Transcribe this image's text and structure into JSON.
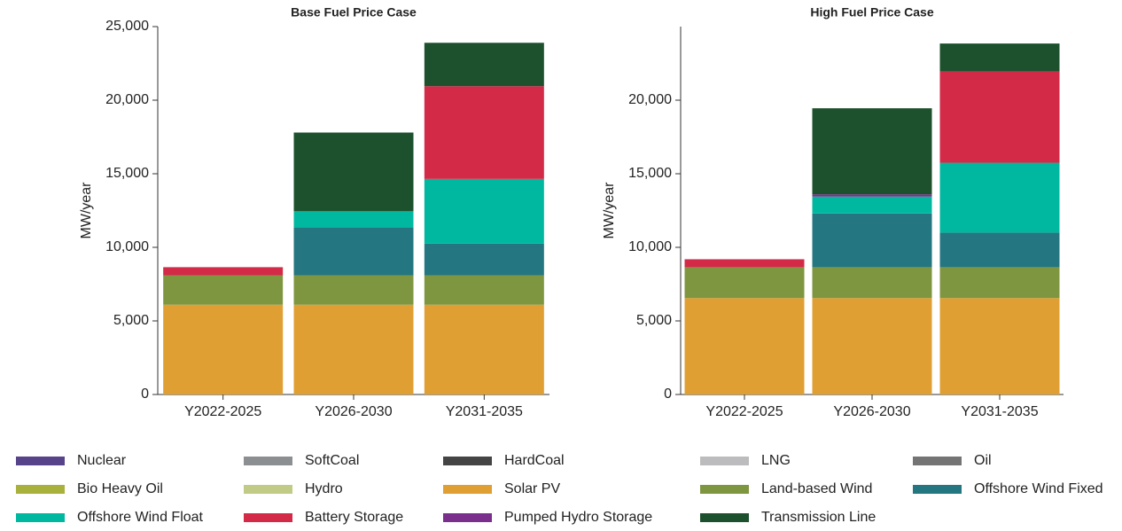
{
  "chart_data": [
    {
      "type": "bar",
      "stacked": true,
      "title": "Base Fuel Price Case",
      "ylabel": "MW/year",
      "categories": [
        "Y2022-2025",
        "Y2026-2030",
        "Y2031-2035"
      ],
      "ylim": [
        0,
        25000
      ],
      "yticks": [
        0,
        {
          "value": 5000,
          "label": "5,000"
        },
        {
          "value": 10000,
          "label": "10,000"
        },
        {
          "value": 15000,
          "label": "15,000"
        },
        {
          "value": 20000,
          "label": "20,000"
        },
        {
          "value": 25000,
          "label": "25,000"
        }
      ],
      "series": [
        {
          "values": [
            0,
            0,
            0
          ]
        },
        {
          "values": [
            0,
            0,
            0
          ]
        },
        {
          "values": [
            0,
            0,
            0
          ]
        },
        {
          "values": [
            0,
            0,
            0
          ]
        },
        {
          "values": [
            0,
            0,
            0
          ]
        },
        {
          "values": [
            0,
            0,
            0
          ]
        },
        {
          "values": [
            0,
            0,
            0
          ]
        },
        {
          "values": [
            6100,
            6100,
            6100
          ]
        },
        {
          "values": [
            2000,
            2000,
            2000
          ]
        },
        {
          "values": [
            0,
            3250,
            2150
          ]
        },
        {
          "values": [
            0,
            1100,
            4400
          ]
        },
        {
          "values": [
            550,
            0,
            6300
          ]
        },
        {
          "values": [
            0,
            0,
            0
          ]
        },
        {
          "values": [
            0,
            5350,
            2950
          ]
        }
      ]
    },
    {
      "type": "bar",
      "stacked": true,
      "title": "High Fuel Price Case",
      "ylabel": "MW/year",
      "categories": [
        "Y2022-2025",
        "Y2026-2030",
        "Y2031-2035"
      ],
      "ylim": [
        0,
        25000
      ],
      "yticks": [
        0,
        {
          "value": 5000,
          "label": "5,000"
        },
        {
          "value": 10000,
          "label": "10,000"
        },
        {
          "value": 15000,
          "label": "15,000"
        },
        {
          "value": 20000,
          "label": "20,000"
        }
      ],
      "series": [
        {
          "values": [
            0,
            0,
            0
          ]
        },
        {
          "values": [
            0,
            0,
            0
          ]
        },
        {
          "values": [
            0,
            0,
            0
          ]
        },
        {
          "values": [
            0,
            0,
            0
          ]
        },
        {
          "values": [
            0,
            0,
            0
          ]
        },
        {
          "values": [
            0,
            0,
            0
          ]
        },
        {
          "values": [
            0,
            0,
            0
          ]
        },
        {
          "values": [
            6550,
            6550,
            6550
          ]
        },
        {
          "values": [
            2100,
            2100,
            2100
          ]
        },
        {
          "values": [
            0,
            3650,
            2350
          ]
        },
        {
          "values": [
            0,
            1150,
            4750
          ]
        },
        {
          "values": [
            540,
            0,
            6200
          ]
        },
        {
          "values": [
            0,
            150,
            0
          ]
        },
        {
          "values": [
            0,
            5850,
            1900
          ]
        }
      ]
    }
  ],
  "legend": [
    {
      "name": "Nuclear",
      "color": "#56438a"
    },
    {
      "name": "SoftCoal",
      "color": "#8c8f91"
    },
    {
      "name": "HardCoal",
      "color": "#444444"
    },
    {
      "name": "LNG",
      "color": "#bcbcbe"
    },
    {
      "name": "Oil",
      "color": "#747474"
    },
    {
      "name": "Bio Heavy Oil",
      "color": "#a9b13d"
    },
    {
      "name": "Hydro",
      "color": "#c2cb85"
    },
    {
      "name": "Solar PV",
      "color": "#e09f32"
    },
    {
      "name": "Land-based Wind",
      "color": "#7f9640"
    },
    {
      "name": "Offshore Wind Fixed",
      "color": "#247680"
    },
    {
      "name": "Offshore Wind Float",
      "color": "#00b8a0"
    },
    {
      "name": "Battery Storage",
      "color": "#d22a47"
    },
    {
      "name": "Pumped Hydro Storage",
      "color": "#7b2f8d"
    },
    {
      "name": "Transmission Line",
      "color": "#1d512d"
    }
  ]
}
